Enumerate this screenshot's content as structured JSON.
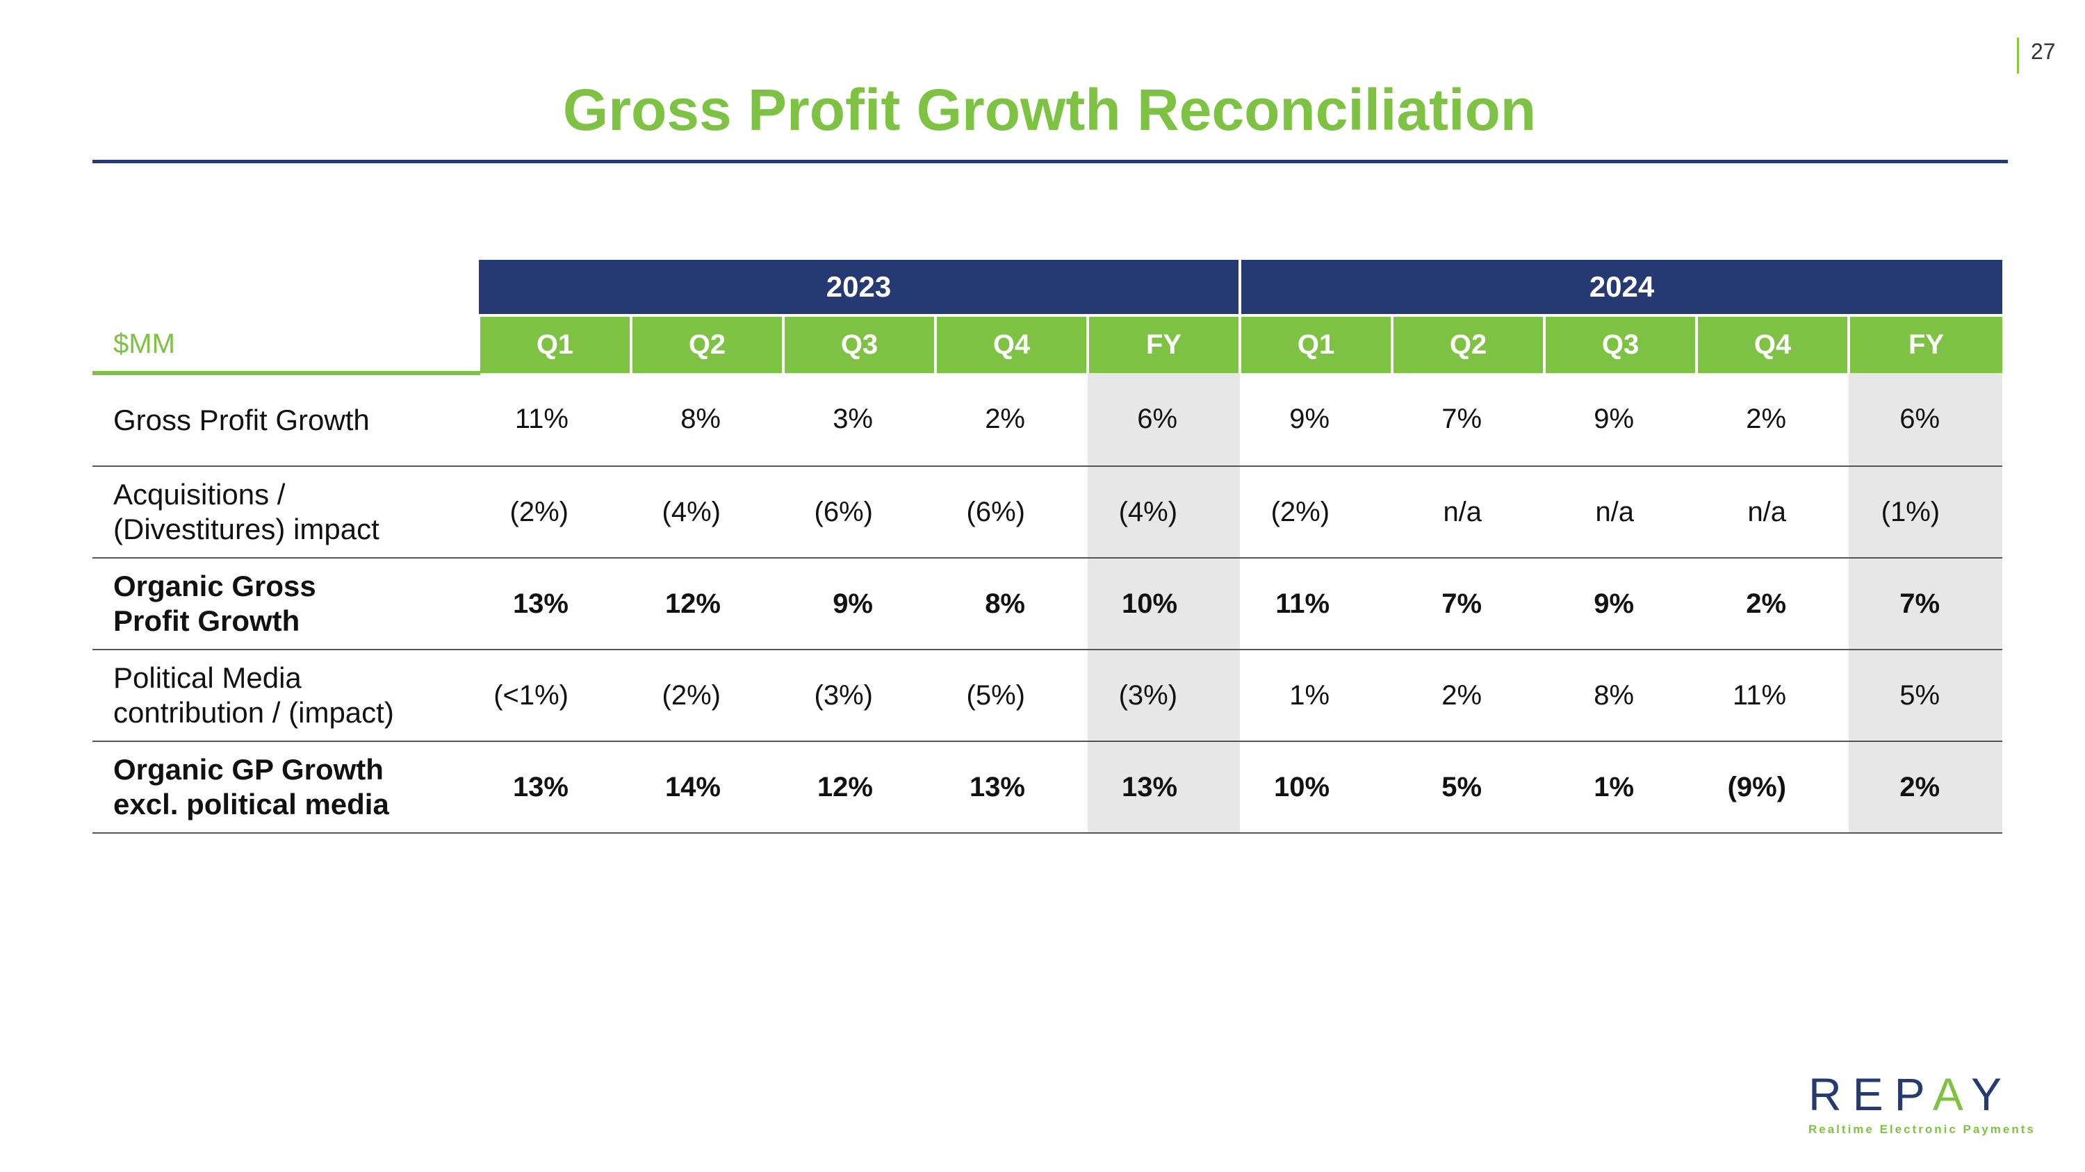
{
  "page_number": "27",
  "title": "Gross Profit Growth Reconciliation",
  "unit_label": "$MM",
  "years": [
    "2023",
    "2024"
  ],
  "quarters": [
    "Q1",
    "Q2",
    "Q3",
    "Q4",
    "FY",
    "Q1",
    "Q2",
    "Q3",
    "Q4",
    "FY"
  ],
  "rows": [
    {
      "label_1": "Gross Profit Growth",
      "label_2": "",
      "bold": false,
      "values": [
        "11%",
        "8%",
        "3%",
        "2%",
        "6%",
        "9%",
        "7%",
        "9%",
        "2%",
        "6%"
      ]
    },
    {
      "label_1": "Acquisitions /",
      "label_2": "(Divestitures) impact",
      "bold": false,
      "values": [
        "(2%)",
        "(4%)",
        "(6%)",
        "(6%)",
        "(4%)",
        "(2%)",
        "n/a",
        "n/a",
        "n/a",
        "(1%)"
      ]
    },
    {
      "label_1": "Organic Gross",
      "label_2": "Profit Growth",
      "bold": true,
      "values": [
        "13%",
        "12%",
        "9%",
        "8%",
        "10%",
        "11%",
        "7%",
        "9%",
        "2%",
        "7%"
      ]
    },
    {
      "label_1": "Political Media",
      "label_2": "contribution / (impact)",
      "bold": false,
      "values": [
        "(<1%)",
        "(2%)",
        "(3%)",
        "(5%)",
        "(3%)",
        "1%",
        "2%",
        "8%",
        "11%",
        "5%"
      ]
    },
    {
      "label_1": "Organic GP Growth",
      "label_2": "excl. political media",
      "bold": true,
      "values": [
        "13%",
        "14%",
        "12%",
        "13%",
        "13%",
        "10%",
        "5%",
        "1%",
        "(9%)",
        "2%"
      ]
    }
  ],
  "logo": {
    "word_1": "REP",
    "word_a": "A",
    "word_2": "Y",
    "tagline": "Realtime Electronic Payments"
  },
  "colors": {
    "navy": "#253a72",
    "green": "#7dc242",
    "fy_shade": "#e7e7e7"
  }
}
